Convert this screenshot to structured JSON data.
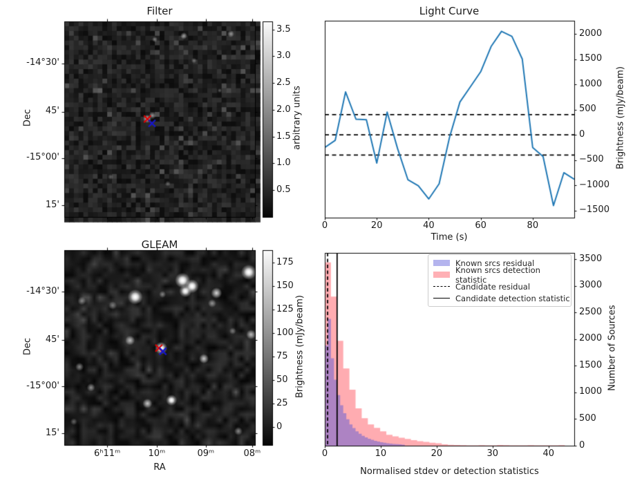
{
  "figure": {
    "background": "#ffffff"
  },
  "chart_data": [
    {
      "id": "filter",
      "type": "heatmap",
      "title": "Filter",
      "xlabel": "",
      "ylabel": "Dec",
      "yticklabels": [
        "-14°30'",
        "45'",
        "-15°00'",
        "15'"
      ],
      "colorbar": {
        "label": "arbitrary units",
        "ticklabels": [
          "0.5",
          "1.0",
          "1.5",
          "2.0",
          "2.5",
          "3.0",
          "3.5"
        ],
        "tick_values": [
          0.5,
          1.0,
          1.5,
          2.0,
          2.5,
          3.0,
          3.5
        ],
        "vmin": 0,
        "vmax": 3.65
      },
      "markers": [
        {
          "name": "candidate-position-marker",
          "shape": "x",
          "color": "#e00000",
          "fx": 0.436,
          "fy": 0.499
        },
        {
          "name": "catalogue-position-marker",
          "shape": "x",
          "color": "#1414cc",
          "fx": 0.46,
          "fy": 0.521
        }
      ],
      "bright_spots": [
        [
          0.435,
          0.498,
          6,
          0.85
        ],
        [
          0.462,
          0.482,
          5,
          0.5
        ],
        [
          0.627,
          0.074,
          5,
          0.6
        ],
        [
          0.475,
          0.092,
          4,
          0.45
        ],
        [
          0.873,
          0.064,
          5,
          0.55
        ],
        [
          0.68,
          0.2,
          4,
          0.35
        ],
        [
          0.815,
          0.353,
          3,
          0.3
        ],
        [
          0.243,
          0.795,
          4,
          0.3
        ],
        [
          0.543,
          0.83,
          4,
          0.35
        ]
      ]
    },
    {
      "id": "light_curve",
      "type": "line",
      "title": "Light Curve",
      "xlabel": "Time (s)",
      "ylabel": "Brightness (mJy/beam)",
      "line_color": "#1f77b4",
      "x": [
        0,
        4,
        8,
        12,
        16,
        20,
        24,
        28,
        32,
        36,
        40,
        44,
        48,
        52,
        56,
        60,
        64,
        68,
        72,
        76,
        80,
        84,
        88,
        92,
        96
      ],
      "y": [
        -250,
        -110,
        850,
        310,
        300,
        -560,
        450,
        -270,
        -890,
        -1010,
        -1270,
        -970,
        -50,
        650,
        950,
        1250,
        1750,
        2050,
        1950,
        1500,
        -250,
        -430,
        -1400,
        -750,
        -880
      ],
      "dashed_hlines": [
        400,
        0,
        -400
      ],
      "xlim": [
        0,
        96
      ],
      "ylim": [
        -1640,
        2260
      ],
      "xticks": [
        0,
        20,
        40,
        60,
        80
      ],
      "yticks": [
        -1500,
        -1000,
        -500,
        0,
        500,
        1000,
        1500,
        2000
      ]
    },
    {
      "id": "gleam",
      "type": "heatmap",
      "title": "GLEAM",
      "xlabel": "RA",
      "ylabel": "Dec",
      "xticklabels": [
        "6ʰ11ᵐ",
        "10ᵐ",
        "09ᵐ",
        "08ᵐ"
      ],
      "yticklabels": [
        "-14°30'",
        "45'",
        "-15°00'",
        "15'"
      ],
      "colorbar": {
        "label": "Brightness (mJy/beam)",
        "ticklabels": [
          "0",
          "25",
          "50",
          "75",
          "100",
          "125",
          "150",
          "175"
        ],
        "tick_values": [
          0,
          25,
          50,
          75,
          100,
          125,
          150,
          175
        ],
        "vmin": -19,
        "vmax": 188
      },
      "markers": [
        {
          "name": "candidate-position-marker",
          "shape": "x",
          "color": "#e00000",
          "fx": 0.496,
          "fy": 0.503
        },
        {
          "name": "catalogue-position-marker",
          "shape": "x",
          "color": "#1414cc",
          "fx": 0.517,
          "fy": 0.519
        }
      ],
      "sources": [
        [
          0.62,
          0.155,
          11,
          1.0
        ],
        [
          0.67,
          0.185,
          10,
          1.0
        ],
        [
          0.635,
          0.21,
          9,
          0.9
        ],
        [
          0.967,
          0.113,
          11,
          1.0
        ],
        [
          0.372,
          0.24,
          11,
          0.95
        ],
        [
          0.798,
          0.22,
          8,
          0.85
        ],
        [
          0.775,
          0.273,
          6,
          0.5
        ],
        [
          0.515,
          0.227,
          5,
          0.45
        ],
        [
          0.092,
          0.261,
          6,
          0.45
        ],
        [
          0.254,
          0.284,
          6,
          0.4
        ],
        [
          0.345,
          0.463,
          7,
          0.7
        ],
        [
          0.508,
          0.503,
          9,
          1.0
        ],
        [
          0.732,
          0.557,
          7,
          0.8
        ],
        [
          0.979,
          0.433,
          7,
          0.7
        ],
        [
          0.883,
          0.415,
          5,
          0.4
        ],
        [
          0.08,
          0.599,
          6,
          0.5
        ],
        [
          0.14,
          0.705,
          6,
          0.55
        ],
        [
          0.436,
          0.787,
          7,
          0.75
        ],
        [
          0.562,
          0.77,
          8,
          0.9
        ],
        [
          0.913,
          0.929,
          6,
          0.5
        ],
        [
          0.05,
          0.88,
          5,
          0.35
        ]
      ]
    },
    {
      "id": "histogram",
      "type": "histogram",
      "title": "",
      "xlabel": "Normalised stdev or detection statistics",
      "ylabel": "Number of Sources",
      "xlim": [
        0,
        44.6
      ],
      "ylim": [
        0,
        3620
      ],
      "xticks": [
        0,
        10,
        20,
        30,
        40
      ],
      "yticks": [
        0,
        500,
        1000,
        1500,
        2000,
        2500,
        3000,
        3500
      ],
      "series": [
        {
          "name": "Known srcs residual",
          "swatch": "#b4b4ee",
          "fill": "rgba(92,92,214,0.5)",
          "bin_start": 0.0,
          "bin_width": 0.55,
          "counts": [
            1880,
            2380,
            1640,
            1240,
            950,
            760,
            610,
            495,
            400,
            330,
            270,
            225,
            185,
            155,
            130,
            110,
            92,
            78,
            66,
            56,
            47,
            40,
            34,
            29,
            25,
            21
          ]
        },
        {
          "name": "Known srcs detection statistic",
          "swatch": "#ffb0b5",
          "fill": "rgba(255,90,100,0.5)",
          "bin_start": 0.0,
          "bin_width": 1.1,
          "counts": [
            3440,
            2800,
            1970,
            1450,
            1050,
            700,
            515,
            400,
            335,
            270,
            205,
            175,
            150,
            125,
            105,
            85,
            70,
            55,
            45,
            25,
            15,
            12,
            10,
            8,
            6,
            10,
            5,
            8,
            12,
            10,
            6,
            5,
            8,
            10,
            6,
            5,
            8,
            6,
            10
          ]
        }
      ],
      "vlines": [
        {
          "label": "Candidate residual",
          "style": "dashed",
          "x": 0.5,
          "color": "#000000"
        },
        {
          "label": "Candidate detection statistic",
          "style": "solid",
          "x": 2.2,
          "color": "#000000"
        }
      ],
      "legend": {
        "entries": [
          "Known srcs residual",
          "Known srcs detection statistic",
          "Candidate residual",
          "Candidate detection statistic"
        ]
      }
    }
  ]
}
